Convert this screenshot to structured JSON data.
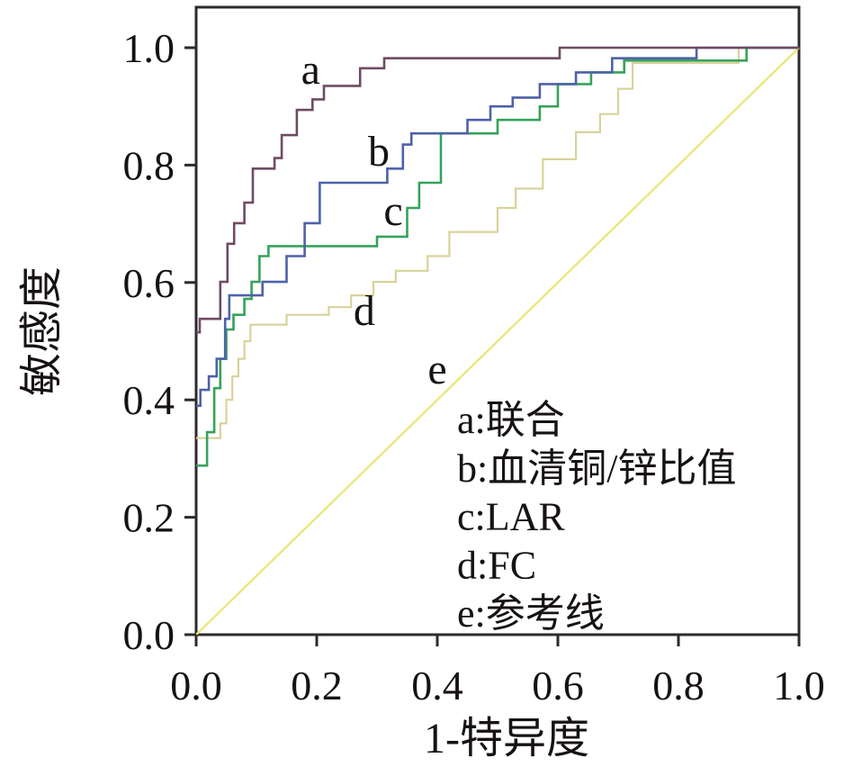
{
  "figure": {
    "background_color": "#ffffff",
    "axis_color": "#2e2a2c",
    "text_color": "#171214"
  },
  "chart_data": {
    "type": "line",
    "subtype": "roc-step-curves",
    "title": "",
    "xlabel": "1-特异度",
    "ylabel": "敏感度",
    "xlim": [
      0.0,
      1.0
    ],
    "ylim": [
      0.0,
      1.0
    ],
    "grid": false,
    "legend_position": "inside-lower-right",
    "x_ticks": [
      "0.0",
      "0.2",
      "0.4",
      "0.6",
      "0.8",
      "1.0"
    ],
    "y_ticks": [
      "0.0",
      "0.2",
      "0.4",
      "0.6",
      "0.8",
      "1.0"
    ],
    "series": [
      {
        "id": "e",
        "name": "参考线",
        "legend_label": "e:参考线",
        "color": "#eae77e",
        "stroke_width": 2.4,
        "points": [
          [
            0,
            0
          ],
          [
            1,
            1
          ]
        ]
      },
      {
        "id": "d",
        "name": "FC",
        "legend_label": "d:FC",
        "color": "#d8d39a",
        "stroke_width": 2.2,
        "points": [
          [
            0,
            0.335
          ],
          [
            0.04,
            0.335
          ],
          [
            0.04,
            0.36
          ],
          [
            0.05,
            0.36
          ],
          [
            0.05,
            0.4
          ],
          [
            0.06,
            0.4
          ],
          [
            0.06,
            0.44
          ],
          [
            0.07,
            0.44
          ],
          [
            0.07,
            0.47
          ],
          [
            0.08,
            0.47
          ],
          [
            0.08,
            0.5
          ],
          [
            0.09,
            0.5
          ],
          [
            0.09,
            0.528
          ],
          [
            0.15,
            0.528
          ],
          [
            0.15,
            0.545
          ],
          [
            0.22,
            0.545
          ],
          [
            0.22,
            0.558
          ],
          [
            0.257,
            0.558
          ],
          [
            0.257,
            0.578
          ],
          [
            0.294,
            0.578
          ],
          [
            0.294,
            0.601
          ],
          [
            0.331,
            0.601
          ],
          [
            0.331,
            0.62
          ],
          [
            0.384,
            0.62
          ],
          [
            0.384,
            0.645
          ],
          [
            0.42,
            0.645
          ],
          [
            0.42,
            0.686
          ],
          [
            0.5,
            0.686
          ],
          [
            0.5,
            0.727
          ],
          [
            0.53,
            0.727
          ],
          [
            0.53,
            0.76
          ],
          [
            0.575,
            0.76
          ],
          [
            0.575,
            0.81
          ],
          [
            0.63,
            0.81
          ],
          [
            0.63,
            0.856
          ],
          [
            0.67,
            0.856
          ],
          [
            0.67,
            0.887
          ],
          [
            0.7,
            0.887
          ],
          [
            0.7,
            0.93
          ],
          [
            0.724,
            0.93
          ],
          [
            0.724,
            0.974
          ],
          [
            0.9,
            0.974
          ],
          [
            0.9,
            1
          ],
          [
            1,
            1
          ]
        ]
      },
      {
        "id": "c",
        "name": "LAR",
        "legend_label": "c:LAR",
        "color": "#36a25a",
        "stroke_width": 2.6,
        "points": [
          [
            0,
            0.288
          ],
          [
            0.018,
            0.288
          ],
          [
            0.018,
            0.345
          ],
          [
            0.03,
            0.345
          ],
          [
            0.03,
            0.42
          ],
          [
            0.04,
            0.42
          ],
          [
            0.04,
            0.47
          ],
          [
            0.05,
            0.47
          ],
          [
            0.05,
            0.52
          ],
          [
            0.062,
            0.52
          ],
          [
            0.062,
            0.545
          ],
          [
            0.08,
            0.545
          ],
          [
            0.08,
            0.572
          ],
          [
            0.092,
            0.572
          ],
          [
            0.092,
            0.601
          ],
          [
            0.105,
            0.601
          ],
          [
            0.105,
            0.645
          ],
          [
            0.12,
            0.645
          ],
          [
            0.12,
            0.662
          ],
          [
            0.3,
            0.662
          ],
          [
            0.3,
            0.678
          ],
          [
            0.35,
            0.678
          ],
          [
            0.35,
            0.727
          ],
          [
            0.37,
            0.727
          ],
          [
            0.37,
            0.77
          ],
          [
            0.406,
            0.77
          ],
          [
            0.406,
            0.854
          ],
          [
            0.5,
            0.854
          ],
          [
            0.5,
            0.877
          ],
          [
            0.57,
            0.877
          ],
          [
            0.57,
            0.9
          ],
          [
            0.6,
            0.9
          ],
          [
            0.6,
            0.938
          ],
          [
            0.655,
            0.938
          ],
          [
            0.655,
            0.958
          ],
          [
            0.71,
            0.958
          ],
          [
            0.71,
            0.978
          ],
          [
            0.913,
            0.978
          ],
          [
            0.913,
            1
          ],
          [
            1,
            1
          ]
        ]
      },
      {
        "id": "b",
        "name": "血清铜/锌比值",
        "legend_label": "b:血清铜/锌比值",
        "color": "#4e62a9",
        "stroke_width": 2.6,
        "points": [
          [
            0,
            0.39
          ],
          [
            0.007,
            0.39
          ],
          [
            0.007,
            0.417
          ],
          [
            0.021,
            0.417
          ],
          [
            0.021,
            0.44
          ],
          [
            0.034,
            0.44
          ],
          [
            0.034,
            0.47
          ],
          [
            0.048,
            0.47
          ],
          [
            0.048,
            0.538
          ],
          [
            0.055,
            0.538
          ],
          [
            0.055,
            0.578
          ],
          [
            0.11,
            0.578
          ],
          [
            0.11,
            0.601
          ],
          [
            0.15,
            0.601
          ],
          [
            0.15,
            0.645
          ],
          [
            0.18,
            0.645
          ],
          [
            0.18,
            0.701
          ],
          [
            0.205,
            0.701
          ],
          [
            0.205,
            0.77
          ],
          [
            0.317,
            0.77
          ],
          [
            0.317,
            0.794
          ],
          [
            0.343,
            0.794
          ],
          [
            0.343,
            0.835
          ],
          [
            0.357,
            0.835
          ],
          [
            0.357,
            0.854
          ],
          [
            0.45,
            0.854
          ],
          [
            0.45,
            0.877
          ],
          [
            0.488,
            0.877
          ],
          [
            0.488,
            0.9
          ],
          [
            0.525,
            0.9
          ],
          [
            0.525,
            0.915
          ],
          [
            0.57,
            0.915
          ],
          [
            0.57,
            0.938
          ],
          [
            0.63,
            0.938
          ],
          [
            0.63,
            0.958
          ],
          [
            0.69,
            0.958
          ],
          [
            0.69,
            0.982
          ],
          [
            0.83,
            0.982
          ],
          [
            0.83,
            1
          ],
          [
            1,
            1
          ]
        ]
      },
      {
        "id": "a",
        "name": "联合",
        "legend_label": "a:联合",
        "color": "#6e4b63",
        "stroke_width": 2.6,
        "points": [
          [
            0,
            0.515
          ],
          [
            0.006,
            0.515
          ],
          [
            0.006,
            0.538
          ],
          [
            0.04,
            0.538
          ],
          [
            0.04,
            0.601
          ],
          [
            0.052,
            0.601
          ],
          [
            0.052,
            0.666
          ],
          [
            0.063,
            0.666
          ],
          [
            0.063,
            0.701
          ],
          [
            0.08,
            0.701
          ],
          [
            0.08,
            0.736
          ],
          [
            0.094,
            0.736
          ],
          [
            0.094,
            0.794
          ],
          [
            0.13,
            0.794
          ],
          [
            0.13,
            0.812
          ],
          [
            0.142,
            0.812
          ],
          [
            0.142,
            0.851
          ],
          [
            0.167,
            0.851
          ],
          [
            0.167,
            0.894
          ],
          [
            0.193,
            0.894
          ],
          [
            0.193,
            0.912
          ],
          [
            0.212,
            0.912
          ],
          [
            0.212,
            0.935
          ],
          [
            0.272,
            0.935
          ],
          [
            0.272,
            0.965
          ],
          [
            0.312,
            0.965
          ],
          [
            0.312,
            0.982
          ],
          [
            0.603,
            0.982
          ],
          [
            0.603,
            1
          ],
          [
            1,
            1
          ]
        ]
      }
    ],
    "curve_annotations": [
      {
        "text": "a",
        "x": 0.19,
        "y": 0.965
      },
      {
        "text": "b",
        "x": 0.303,
        "y": 0.825
      },
      {
        "text": "c",
        "x": 0.327,
        "y": 0.724
      },
      {
        "text": "d",
        "x": 0.279,
        "y": 0.554
      },
      {
        "text": "e",
        "x": 0.4,
        "y": 0.454
      }
    ],
    "legend": {
      "items": [
        {
          "key": "a",
          "label": "a:联合"
        },
        {
          "key": "b",
          "label": "b:血清铜/锌比值"
        },
        {
          "key": "c",
          "label": "c:LAR"
        },
        {
          "key": "d",
          "label": "d:FC"
        },
        {
          "key": "e",
          "label": "e:参考线"
        }
      ]
    }
  }
}
